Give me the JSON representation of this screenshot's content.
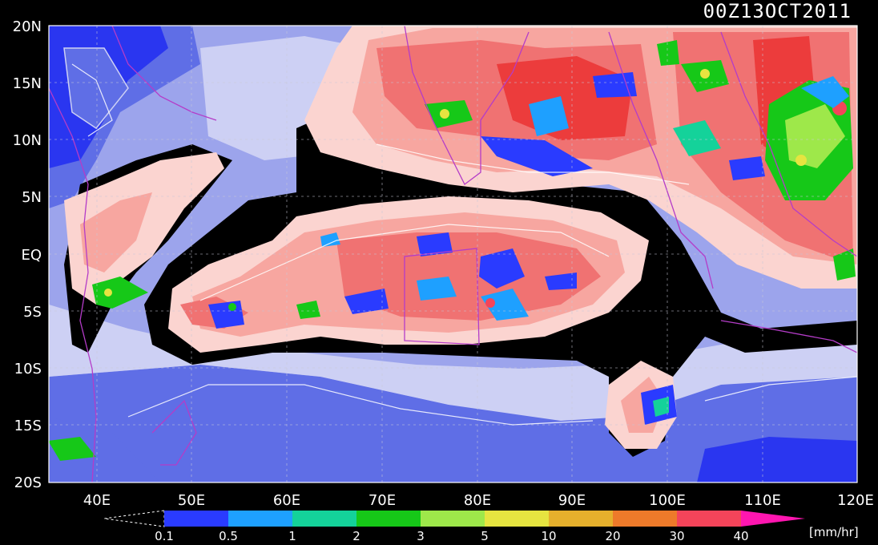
{
  "title": "00Z13OCT2011",
  "lat_labels": [
    "20N",
    "15N",
    "10N",
    "5N",
    "EQ",
    "5S",
    "10S",
    "15S",
    "20S"
  ],
  "lon_labels": [
    "40E",
    "50E",
    "60E",
    "70E",
    "80E",
    "90E",
    "100E",
    "110E",
    "120E"
  ],
  "colorbar": {
    "ticks": [
      "0.1",
      "0.5",
      "1",
      "2",
      "3",
      "5",
      "10",
      "20",
      "30",
      "40"
    ],
    "colors": [
      "#2a3bff",
      "#1ea0ff",
      "#14d29a",
      "#16c818",
      "#9ee84a",
      "#e6e440",
      "#e6b02c",
      "#ee7a2a",
      "#f4445a",
      "#ff16b0"
    ],
    "unit": "[mm/hr]"
  },
  "palette": {
    "ocean_dark": "#2a36f0",
    "ocean_mid": "#5f6ee6",
    "ocean_light": "#9ca4ec",
    "ocean_pale": "#cdd0f4",
    "warm_pale": "#fbd4d0",
    "warm_light": "#f7a6a0",
    "warm_mid": "#f07272",
    "warm_hot": "#ec3c3c",
    "zero_contour": "#000000",
    "coast": "#b43cc8",
    "grid": "#c8c8d8"
  }
}
